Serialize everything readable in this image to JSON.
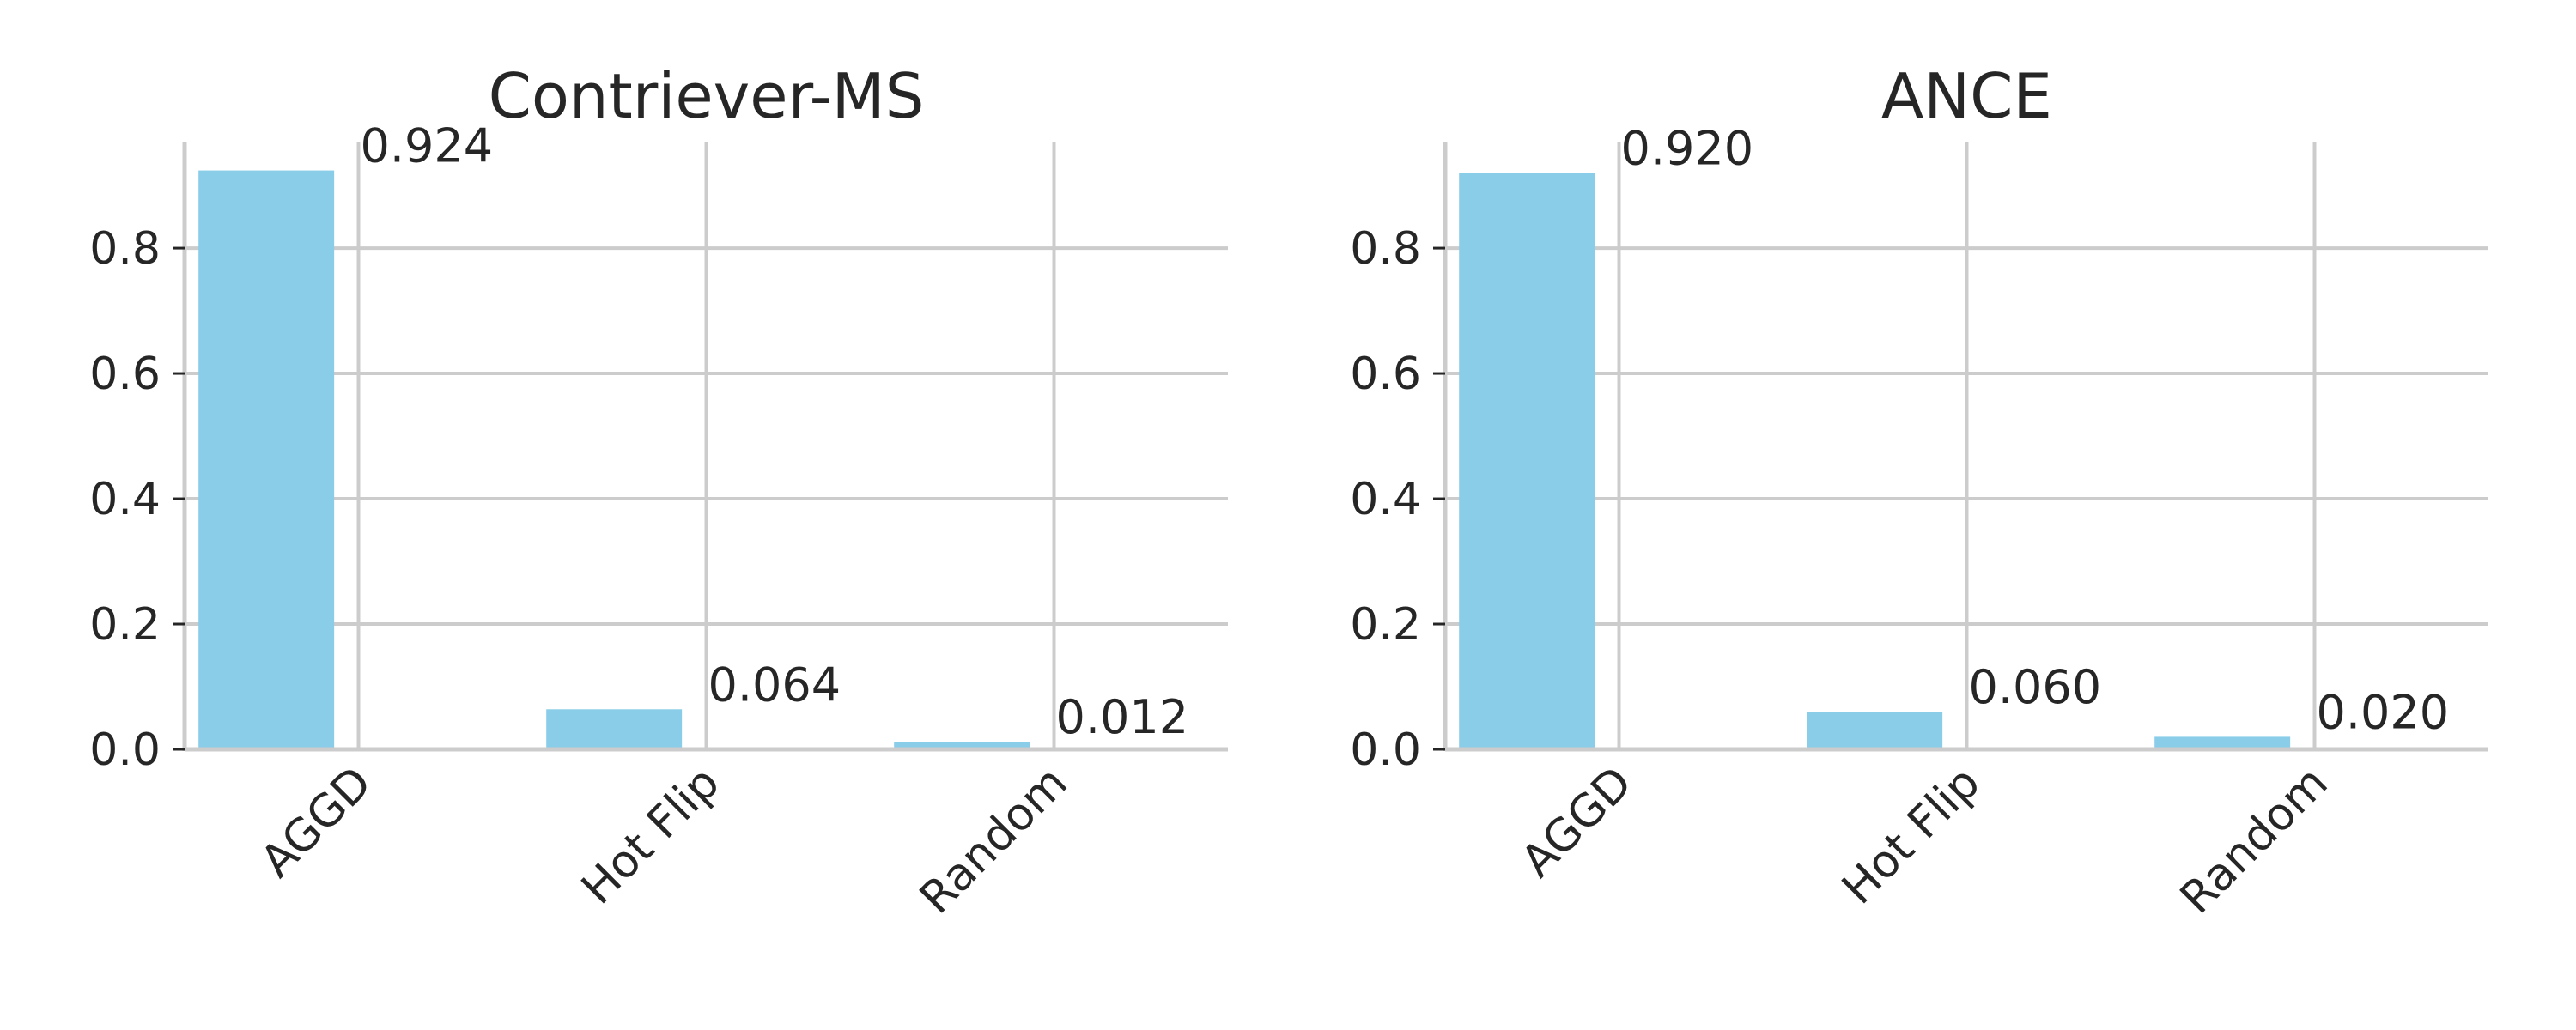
{
  "chart_data": [
    {
      "type": "bar",
      "title": "Contriever-MS",
      "categories": [
        "AGGD",
        "Hot Flip",
        "Random"
      ],
      "values": [
        0.924,
        0.064,
        0.012
      ],
      "value_labels": [
        "0.924",
        "0.064",
        "0.012"
      ],
      "ylim": [
        0,
        0.97
      ],
      "yticks": [
        0.0,
        0.2,
        0.4,
        0.6,
        0.8
      ],
      "ytick_labels": [
        "0.0",
        "0.2",
        "0.4",
        "0.6",
        "0.8"
      ],
      "xlabel": "",
      "ylabel": "",
      "grid": true,
      "bar_color": "#89CDE8"
    },
    {
      "type": "bar",
      "title": "ANCE",
      "categories": [
        "AGGD",
        "Hot Flip",
        "Random"
      ],
      "values": [
        0.92,
        0.06,
        0.02
      ],
      "value_labels": [
        "0.920",
        "0.060",
        "0.020"
      ],
      "ylim": [
        0,
        0.97
      ],
      "yticks": [
        0.0,
        0.2,
        0.4,
        0.6,
        0.8
      ],
      "ytick_labels": [
        "0.0",
        "0.2",
        "0.4",
        "0.6",
        "0.8"
      ],
      "xlabel": "",
      "ylabel": "",
      "grid": true,
      "bar_color": "#89CDE8"
    }
  ]
}
